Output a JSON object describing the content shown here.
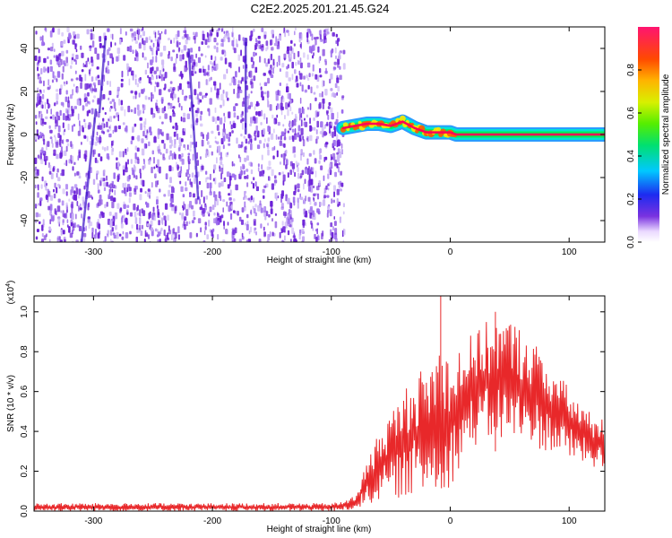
{
  "title": "C2E2.2025.201.21.45.G24",
  "chart_data": [
    {
      "type": "heatmap",
      "title": "C2E2.2025.201.21.45.G24",
      "xlabel": "Height of straight line (km)",
      "ylabel": "Frequency (Hz)",
      "xlim": [
        -350,
        130
      ],
      "ylim": [
        -50,
        50
      ],
      "xticks": [
        "-300",
        "-200",
        "-100",
        "0",
        "100"
      ],
      "yticks": [
        "-40",
        "-20",
        "0",
        "20",
        "40"
      ],
      "noise_region_x": [
        -350,
        -90
      ],
      "signal_trace": {
        "x": [
          -90,
          -80,
          -70,
          -60,
          -50,
          -40,
          -30,
          -20,
          -10,
          0,
          5,
          130
        ],
        "freq_hz": [
          3,
          4,
          5,
          5,
          4,
          6,
          3,
          1,
          1,
          1,
          0,
          0
        ]
      },
      "colorbar": {
        "label": "Normalized spectral amplitude",
        "ticks": [
          "0.0",
          "0.2",
          "0.4",
          "0.6",
          "0.8"
        ],
        "range": [
          0,
          1
        ]
      },
      "colors": {
        "noise": "#6a1fd8",
        "noise_light": "#c9b3f5",
        "core": "#ff0055"
      }
    },
    {
      "type": "line",
      "xlabel": "Height of straight line (km)",
      "ylabel": "SNR (10 * v/v)",
      "y_multiplier": "(x10",
      "y_multiplier_exp": "4",
      "y_multiplier_close": ")",
      "xlim": [
        -350,
        130
      ],
      "ylim": [
        0,
        1.08
      ],
      "xticks": [
        "-300",
        "-200",
        "-100",
        "0",
        "100"
      ],
      "yticks": [
        "0.0",
        "0.2",
        "0.4",
        "0.6",
        "0.8",
        "1.0"
      ],
      "envelope": {
        "x": [
          -350,
          -100,
          -90,
          -80,
          -70,
          -60,
          -50,
          -40,
          -30,
          -20,
          -10,
          0,
          10,
          20,
          30,
          40,
          50,
          60,
          70,
          80,
          90,
          100,
          110,
          120,
          130
        ],
        "upper": [
          0.04,
          0.04,
          0.05,
          0.08,
          0.25,
          0.4,
          0.5,
          0.6,
          0.7,
          0.72,
          0.85,
          0.8,
          0.85,
          0.9,
          0.95,
          0.97,
          0.97,
          0.92,
          0.86,
          0.78,
          0.7,
          0.62,
          0.55,
          0.48,
          0.46
        ],
        "lower": [
          0.0,
          0.0,
          0.0,
          0.01,
          0.03,
          0.05,
          0.06,
          0.07,
          0.08,
          0.08,
          0.08,
          0.12,
          0.25,
          0.32,
          0.34,
          0.35,
          0.34,
          0.33,
          0.32,
          0.3,
          0.28,
          0.26,
          0.24,
          0.22,
          0.2
        ]
      },
      "peaks": [
        {
          "x": -8,
          "y": 1.08
        },
        {
          "x": 38,
          "y": 1.0
        }
      ],
      "line_color": "#e8282a"
    }
  ]
}
